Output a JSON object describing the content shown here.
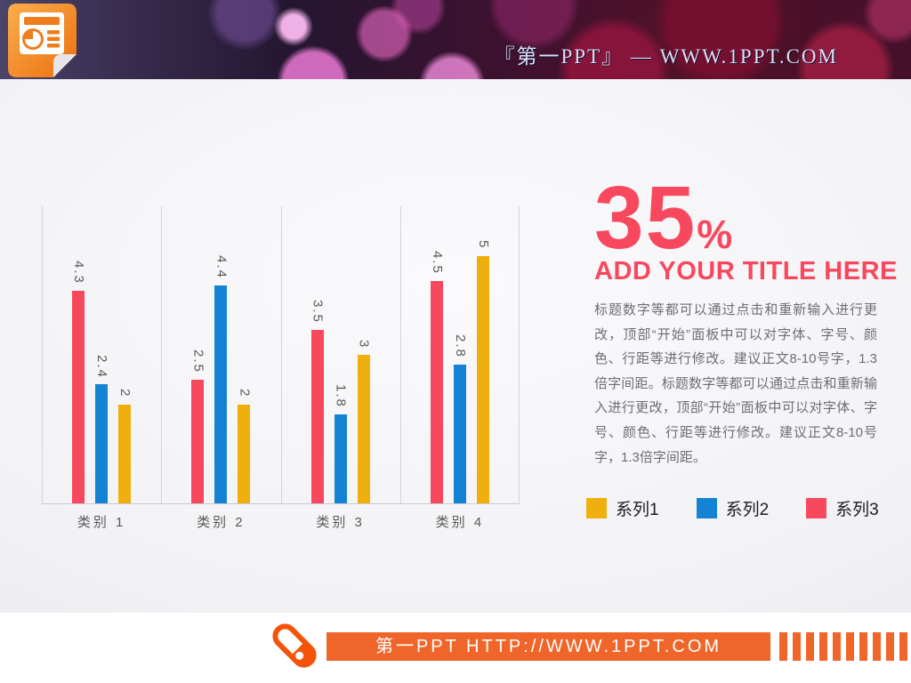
{
  "banner": {
    "title": "『第一PPT』 — WWW.1PPT.COM",
    "logo": "powerpoint-document-icon"
  },
  "chart_data": {
    "type": "bar",
    "title": "",
    "categories": [
      "类别 1",
      "类别 2",
      "类别 3",
      "类别 4"
    ],
    "series": [
      {
        "name": "系列3",
        "color": "#F8485E",
        "values": [
          4.3,
          2.5,
          3.5,
          4.5
        ]
      },
      {
        "name": "系列2",
        "color": "#1583D3",
        "values": [
          2.4,
          4.4,
          1.8,
          2.8
        ]
      },
      {
        "name": "系列1",
        "color": "#EFAF0C",
        "values": [
          2,
          2,
          3,
          5
        ]
      }
    ],
    "series_draw_order": "left-to-right within each category: 系列3, 系列2, 系列1",
    "ylim": [
      0,
      6
    ],
    "data_labels": true,
    "data_label_rotation_deg": 90,
    "data_label_color": "#595959",
    "gridlines": "vertical category-boundary lines only",
    "legend_position": "right panel, bottom",
    "legend": [
      {
        "label": "系列1",
        "color": "#EFAF0C"
      },
      {
        "label": "系列2",
        "color": "#1583D3"
      },
      {
        "label": "系列3",
        "color": "#F8485E"
      }
    ]
  },
  "panel": {
    "big_number": "35",
    "percent_sign": "%",
    "title": "ADD YOUR TITLE HERE",
    "accent_color": "#F8485E",
    "body": "标题数字等都可以通过点击和重新输入进行更改，顶部“开始”面板中可以对字体、字号、颜色、行距等进行修改。建议正文8-10号字，1.3倍字间距。标题数字等都可以通过点击和重新输入进行更改，顶部“开始”面板中可以对字体、字号、颜色、行距等进行修改。建议正文8-10号字，1.3倍字间距。"
  },
  "footer": {
    "bar_text": "第一PPT HTTP://WWW.1PPT.COM",
    "bar_color": "#F0662A",
    "icon": "chalk-icon"
  }
}
